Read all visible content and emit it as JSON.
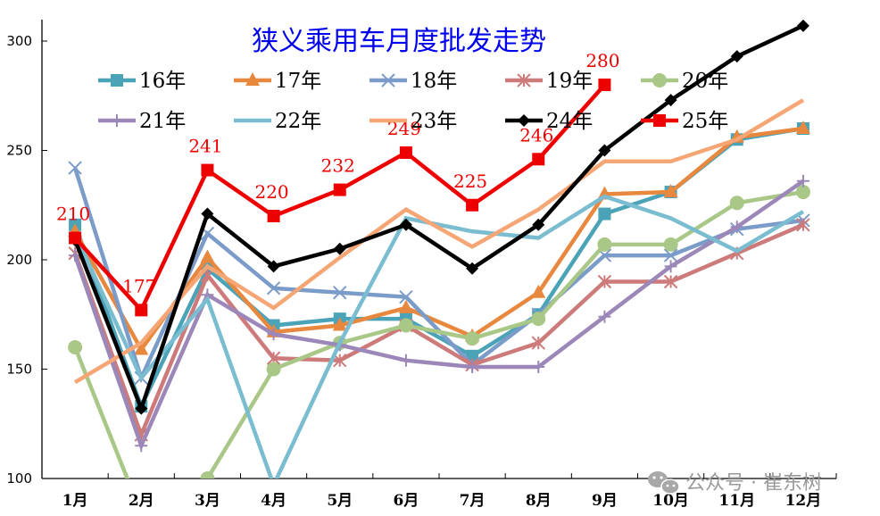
{
  "chart_data": {
    "type": "line",
    "title": "狭义乘用车月度批发走势",
    "xlabel": "",
    "ylabel": "",
    "ylim": [
      100,
      300
    ],
    "yticks": [
      100,
      150,
      200,
      250,
      300
    ],
    "grid": false,
    "legend_position": "top (inside plot, two rows)",
    "categories": [
      "1月",
      "2月",
      "3月",
      "4月",
      "5月",
      "6月",
      "7月",
      "8月",
      "9月",
      "10月",
      "11月",
      "12月"
    ],
    "series": [
      {
        "name": "16年",
        "color": "#4BA3B8",
        "marker": "square",
        "values": [
          216,
          133,
          196,
          170,
          173,
          173,
          156,
          175,
          221,
          231,
          255,
          260
        ]
      },
      {
        "name": "17年",
        "color": "#E8883E",
        "marker": "triangle",
        "values": [
          213,
          159,
          201,
          167,
          170,
          178,
          165,
          185,
          230,
          231,
          256,
          260
        ]
      },
      {
        "name": "18年",
        "color": "#7B9BC9",
        "marker": "x",
        "values": [
          242,
          146,
          212,
          187,
          185,
          183,
          152,
          175,
          202,
          202,
          214,
          218
        ]
      },
      {
        "name": "19年",
        "color": "#CC7A7A",
        "marker": "asterisk",
        "values": [
          203,
          120,
          193,
          155,
          154,
          170,
          152,
          162,
          190,
          190,
          203,
          216
        ]
      },
      {
        "name": "20年",
        "color": "#A9C786",
        "marker": "circle",
        "values": [
          160,
          84,
          100,
          150,
          162,
          170,
          164,
          173,
          207,
          207,
          226,
          231
        ]
      },
      {
        "name": "21年",
        "color": "#9C88B8",
        "marker": "plus",
        "values": [
          202,
          115,
          184,
          166,
          161,
          154,
          151,
          151,
          174,
          197,
          215,
          236
        ]
      },
      {
        "name": "22年",
        "color": "#7ABCD0",
        "marker": "none",
        "values": [
          212,
          146,
          182,
          97,
          162,
          219,
          213,
          210,
          229,
          219,
          204,
          222
        ]
      },
      {
        "name": "23年",
        "color": "#F6A674",
        "marker": "none",
        "values": [
          144,
          162,
          197,
          178,
          201,
          223,
          206,
          223,
          245,
          245,
          255,
          273
        ]
      },
      {
        "name": "24年",
        "color": "#000000",
        "marker": "diamond",
        "values": [
          209,
          132,
          221,
          197,
          205,
          216,
          196,
          216,
          250,
          273,
          293,
          307
        ]
      },
      {
        "name": "25年",
        "color": "#EE0000",
        "marker": "square",
        "values": [
          210,
          177,
          241,
          220,
          232,
          249,
          225,
          246,
          280
        ]
      }
    ],
    "annotations": [
      {
        "series": "25年",
        "month": "1月",
        "text": "210"
      },
      {
        "series": "25年",
        "month": "2月",
        "text": "177"
      },
      {
        "series": "25年",
        "month": "3月",
        "text": "241"
      },
      {
        "series": "25年",
        "month": "4月",
        "text": "220"
      },
      {
        "series": "25年",
        "month": "5月",
        "text": "232"
      },
      {
        "series": "25年",
        "month": "6月",
        "text": "249"
      },
      {
        "series": "25年",
        "month": "7月",
        "text": "225"
      },
      {
        "series": "25年",
        "month": "8月",
        "text": "246"
      },
      {
        "series": "25年",
        "month": "9月",
        "text": "280"
      }
    ]
  },
  "watermark": {
    "icon": "wechat-icon",
    "text": "公众号 · 崔东树"
  }
}
